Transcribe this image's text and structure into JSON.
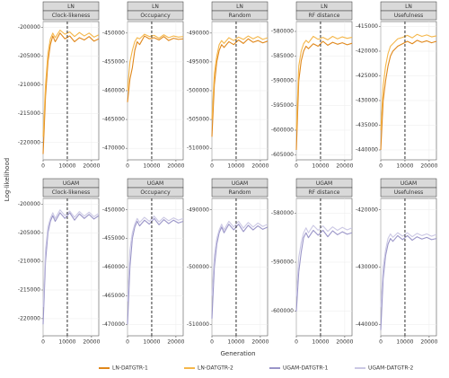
{
  "axis_labels": {
    "x": "Generation",
    "y": "Log-likelihood"
  },
  "chart_data": [
    {
      "type": "line",
      "facet_row": "LN",
      "facet_col": "Clock-likeness",
      "vline": 10000,
      "x": [
        0,
        1000,
        2000,
        3000,
        4000,
        5000,
        7000,
        9000,
        11000,
        13000,
        15000,
        17000,
        19000,
        21000,
        23000
      ],
      "xlim": [
        0,
        23000
      ],
      "xticks": [
        0,
        10000,
        20000
      ],
      "ylim": [
        -223000,
        -199000
      ],
      "yticks": [
        -220000,
        -215000,
        -210000,
        -205000,
        -200000
      ],
      "series": [
        {
          "name": "LN-DATGTR-1",
          "color": "#e0871a",
          "values": [
            -222000,
            -212000,
            -206000,
            -203000,
            -201500,
            -202500,
            -201000,
            -202000,
            -201500,
            -202500,
            -201800,
            -202200,
            -201600,
            -202400,
            -202000
          ]
        },
        {
          "name": "LN-DATGTR-2",
          "color": "#f5b74a",
          "values": [
            -219000,
            -210000,
            -204500,
            -202000,
            -201000,
            -201800,
            -200500,
            -201200,
            -200800,
            -201600,
            -200900,
            -201500,
            -201000,
            -201700,
            -201300
          ]
        }
      ]
    },
    {
      "type": "line",
      "facet_row": "LN",
      "facet_col": "Occupancy",
      "vline": 10000,
      "x": [
        0,
        1000,
        2000,
        3000,
        4000,
        5000,
        7000,
        9000,
        11000,
        13000,
        15000,
        17000,
        19000,
        21000,
        23000
      ],
      "xlim": [
        0,
        23000
      ],
      "xticks": [
        0,
        10000,
        20000
      ],
      "ylim": [
        -472000,
        -448000
      ],
      "yticks": [
        -470000,
        -465000,
        -460000,
        -455000,
        -450000
      ],
      "series": [
        {
          "name": "LN-DATGTR-1",
          "color": "#e0871a",
          "values": [
            -462000,
            -458000,
            -456000,
            -453000,
            -451500,
            -452000,
            -450500,
            -451000,
            -450800,
            -451200,
            -450600,
            -451300,
            -450900,
            -451100,
            -451000
          ]
        },
        {
          "name": "LN-DATGTR-2",
          "color": "#f5b74a",
          "values": [
            -460000,
            -455000,
            -453000,
            -451500,
            -450800,
            -451000,
            -450200,
            -450600,
            -450400,
            -450900,
            -450300,
            -450800,
            -450500,
            -450700,
            -450600
          ]
        }
      ]
    },
    {
      "type": "line",
      "facet_row": "LN",
      "facet_col": "Random",
      "vline": 10000,
      "x": [
        0,
        1000,
        2000,
        3000,
        4000,
        5000,
        7000,
        9000,
        11000,
        13000,
        15000,
        17000,
        19000,
        21000,
        23000
      ],
      "xlim": [
        0,
        23000
      ],
      "xticks": [
        0,
        10000,
        20000
      ],
      "ylim": [
        -512000,
        -488000
      ],
      "yticks": [
        -510000,
        -505000,
        -500000,
        -495000,
        -490000
      ],
      "series": [
        {
          "name": "LN-DATGTR-1",
          "color": "#e0871a",
          "values": [
            -508000,
            -499000,
            -495000,
            -493000,
            -492000,
            -492500,
            -491500,
            -492000,
            -491200,
            -491800,
            -491000,
            -491600,
            -491300,
            -491700,
            -491400
          ]
        },
        {
          "name": "LN-DATGTR-2",
          "color": "#f5b74a",
          "values": [
            -505000,
            -497000,
            -494000,
            -492000,
            -491300,
            -491800,
            -490800,
            -491300,
            -490700,
            -491100,
            -490500,
            -491000,
            -490600,
            -491100,
            -490800
          ]
        }
      ]
    },
    {
      "type": "line",
      "facet_row": "LN",
      "facet_col": "RF distance",
      "vline": 10000,
      "x": [
        0,
        1000,
        2000,
        3000,
        4000,
        5000,
        7000,
        9000,
        11000,
        13000,
        15000,
        17000,
        19000,
        21000,
        23000
      ],
      "xlim": [
        0,
        23000
      ],
      "xticks": [
        0,
        10000,
        20000
      ],
      "ylim": [
        -606000,
        -578000
      ],
      "yticks": [
        -605000,
        -600000,
        -595000,
        -590000,
        -585000,
        -580000
      ],
      "series": [
        {
          "name": "LN-DATGTR-1",
          "color": "#e0871a",
          "values": [
            -604000,
            -590000,
            -586000,
            -584000,
            -583000,
            -583500,
            -582500,
            -583000,
            -582000,
            -582800,
            -582200,
            -582600,
            -582300,
            -582700,
            -582400
          ]
        },
        {
          "name": "LN-DATGTR-2",
          "color": "#f5b74a",
          "values": [
            -600000,
            -587000,
            -584000,
            -582500,
            -581800,
            -582300,
            -581000,
            -581600,
            -581200,
            -581700,
            -581000,
            -581500,
            -581100,
            -581400,
            -581200
          ]
        }
      ]
    },
    {
      "type": "line",
      "facet_row": "LN",
      "facet_col": "Usefulness",
      "vline": 10000,
      "x": [
        0,
        1000,
        2000,
        3000,
        4000,
        5000,
        7000,
        9000,
        11000,
        13000,
        15000,
        17000,
        19000,
        21000,
        23000
      ],
      "xlim": [
        0,
        23000
      ],
      "xticks": [
        0,
        10000,
        20000
      ],
      "ylim": [
        -442000,
        -414000
      ],
      "yticks": [
        -440000,
        -435000,
        -430000,
        -425000,
        -420000,
        -415000
      ],
      "series": [
        {
          "name": "LN-DATGTR-1",
          "color": "#e0871a",
          "values": [
            -440000,
            -430000,
            -426000,
            -423000,
            -421000,
            -420000,
            -419000,
            -418500,
            -418000,
            -418500,
            -417800,
            -418200,
            -417900,
            -418300,
            -418000
          ]
        },
        {
          "name": "LN-DATGTR-2",
          "color": "#f5b74a",
          "values": [
            -436000,
            -427000,
            -423000,
            -420500,
            -419000,
            -418500,
            -417500,
            -417200,
            -416800,
            -417300,
            -416600,
            -417000,
            -416700,
            -417100,
            -416900
          ]
        }
      ]
    },
    {
      "type": "line",
      "facet_row": "UGAM",
      "facet_col": "Clock-likeness",
      "vline": 10000,
      "x": [
        0,
        1000,
        2000,
        3000,
        4000,
        5000,
        7000,
        9000,
        11000,
        13000,
        15000,
        17000,
        19000,
        21000,
        23000
      ],
      "xlim": [
        0,
        23000
      ],
      "xticks": [
        0,
        10000,
        20000
      ],
      "ylim": [
        -223000,
        -199000
      ],
      "yticks": [
        -220000,
        -215000,
        -210000,
        -205000,
        -200000
      ],
      "series": [
        {
          "name": "UGAM-DATGTR-1",
          "color": "#9a95c8",
          "values": [
            -221000,
            -210000,
            -205000,
            -203000,
            -202000,
            -203000,
            -201500,
            -202500,
            -201500,
            -202800,
            -201700,
            -202500,
            -201800,
            -202600,
            -202000
          ]
        },
        {
          "name": "UGAM-DATGTR-2",
          "color": "#cbc8e4",
          "values": [
            -218000,
            -208000,
            -204000,
            -202500,
            -201500,
            -202500,
            -201000,
            -202000,
            -201200,
            -202300,
            -201300,
            -202100,
            -201400,
            -202200,
            -201600
          ]
        }
      ]
    },
    {
      "type": "line",
      "facet_row": "UGAM",
      "facet_col": "Occupancy",
      "vline": 10000,
      "x": [
        0,
        1000,
        2000,
        3000,
        4000,
        5000,
        7000,
        9000,
        11000,
        13000,
        15000,
        17000,
        19000,
        21000,
        23000
      ],
      "xlim": [
        0,
        23000
      ],
      "xticks": [
        0,
        10000,
        20000
      ],
      "ylim": [
        -472000,
        -448000
      ],
      "yticks": [
        -470000,
        -465000,
        -460000,
        -455000,
        -450000
      ],
      "series": [
        {
          "name": "UGAM-DATGTR-1",
          "color": "#9a95c8",
          "values": [
            -470000,
            -460000,
            -455000,
            -453000,
            -452000,
            -452800,
            -451800,
            -452500,
            -451500,
            -452600,
            -451700,
            -452400,
            -451800,
            -452300,
            -452000
          ]
        },
        {
          "name": "UGAM-DATGTR-2",
          "color": "#cbc8e4",
          "values": [
            -466000,
            -457000,
            -454000,
            -452500,
            -451500,
            -452200,
            -451300,
            -452000,
            -451100,
            -452100,
            -451300,
            -451900,
            -451400,
            -451800,
            -451500
          ]
        }
      ]
    },
    {
      "type": "line",
      "facet_row": "UGAM",
      "facet_col": "Random",
      "vline": 10000,
      "x": [
        0,
        1000,
        2000,
        3000,
        4000,
        5000,
        7000,
        9000,
        11000,
        13000,
        15000,
        17000,
        19000,
        21000,
        23000
      ],
      "xlim": [
        0,
        23000
      ],
      "xticks": [
        0,
        10000,
        20000
      ],
      "ylim": [
        -512000,
        -488000
      ],
      "yticks": [
        -510000,
        -500000,
        -490000
      ],
      "series": [
        {
          "name": "UGAM-DATGTR-1",
          "color": "#9a95c8",
          "values": [
            -509000,
            -500000,
            -496000,
            -494000,
            -493000,
            -494000,
            -492500,
            -493500,
            -492500,
            -493800,
            -492700,
            -493500,
            -492800,
            -493400,
            -493000
          ]
        },
        {
          "name": "UGAM-DATGTR-2",
          "color": "#cbc8e4",
          "values": [
            -505000,
            -498000,
            -495000,
            -493500,
            -492500,
            -493500,
            -492000,
            -493000,
            -492000,
            -493200,
            -492200,
            -493000,
            -492300,
            -492900,
            -492500
          ]
        }
      ]
    },
    {
      "type": "line",
      "facet_row": "UGAM",
      "facet_col": "RF distance",
      "vline": 10000,
      "x": [
        0,
        1000,
        2000,
        3000,
        4000,
        5000,
        7000,
        9000,
        11000,
        13000,
        15000,
        17000,
        19000,
        21000,
        23000
      ],
      "xlim": [
        0,
        23000
      ],
      "xticks": [
        0,
        10000,
        20000
      ],
      "ylim": [
        -605000,
        -577000
      ],
      "yticks": [
        -600000,
        -590000,
        -580000
      ],
      "series": [
        {
          "name": "UGAM-DATGTR-1",
          "color": "#9a95c8",
          "values": [
            -600000,
            -592000,
            -588000,
            -585000,
            -584000,
            -585000,
            -583500,
            -584500,
            -583500,
            -584800,
            -583600,
            -584400,
            -583800,
            -584300,
            -584000
          ]
        },
        {
          "name": "UGAM-DATGTR-2",
          "color": "#cbc8e4",
          "values": [
            -597000,
            -589000,
            -586000,
            -584000,
            -583000,
            -584000,
            -582500,
            -583500,
            -582600,
            -583700,
            -582800,
            -583500,
            -582900,
            -583400,
            -583000
          ]
        }
      ]
    },
    {
      "type": "line",
      "facet_row": "UGAM",
      "facet_col": "Usefulness",
      "vline": 10000,
      "x": [
        0,
        1000,
        2000,
        3000,
        4000,
        5000,
        7000,
        9000,
        11000,
        13000,
        15000,
        17000,
        19000,
        21000,
        23000
      ],
      "xlim": [
        0,
        23000
      ],
      "xticks": [
        0,
        10000,
        20000
      ],
      "ylim": [
        -442000,
        -418000
      ],
      "yticks": [
        -440000,
        -430000,
        -420000
      ],
      "series": [
        {
          "name": "UGAM-DATGTR-1",
          "color": "#9a95c8",
          "values": [
            -441000,
            -432000,
            -428000,
            -426000,
            -425000,
            -425500,
            -424500,
            -425200,
            -424500,
            -425300,
            -424700,
            -425100,
            -424800,
            -425200,
            -425000
          ]
        },
        {
          "name": "UGAM-DATGTR-2",
          "color": "#cbc8e4",
          "values": [
            -437000,
            -430000,
            -427000,
            -425000,
            -424200,
            -424800,
            -424000,
            -424600,
            -424000,
            -424700,
            -424100,
            -424500,
            -424200,
            -424600,
            -424300
          ]
        }
      ]
    }
  ]
}
